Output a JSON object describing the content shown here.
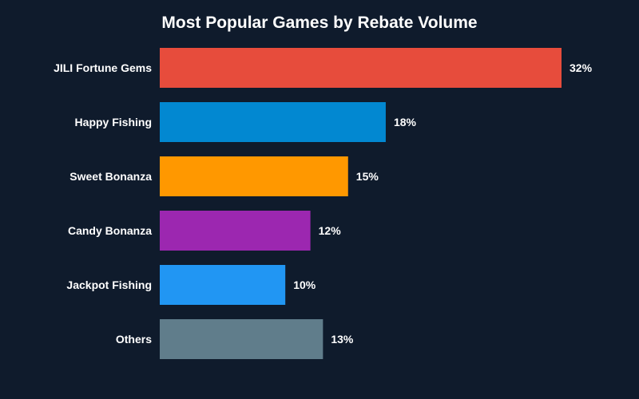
{
  "chart_data": {
    "type": "bar",
    "orientation": "horizontal",
    "title": "Most Popular Games by Rebate Volume",
    "xlabel": "",
    "ylabel": "",
    "xlim": [
      0,
      32
    ],
    "grid": false,
    "categories": [
      "JILI Fortune Gems",
      "Happy Fishing",
      "Sweet Bonanza",
      "Candy Bonanza",
      "Jackpot Fishing",
      "Others"
    ],
    "values": [
      32,
      18,
      15,
      12,
      10,
      13
    ],
    "value_labels": [
      "32%",
      "18%",
      "15%",
      "12%",
      "10%",
      "13%"
    ],
    "colors": [
      "#e74c3c",
      "#0288d1",
      "#ff9800",
      "#9c27b0",
      "#2196f3",
      "#607d8b"
    ],
    "background": "#0f1b2c"
  }
}
